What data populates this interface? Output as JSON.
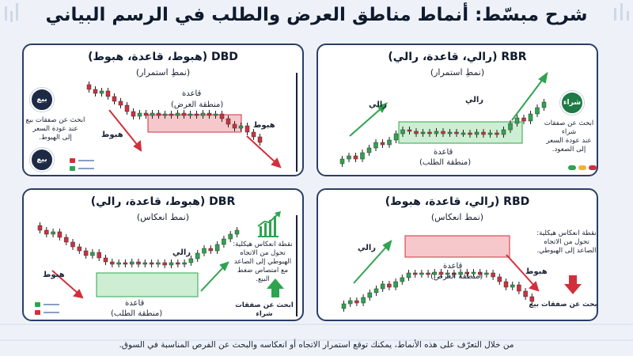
{
  "title": "شرح مبسّط: أنماط مناطق العرض والطلب في الرسم البياني",
  "footer": "من خلال التعرّف على هذه الأنماط، يمكنك توقع استمرار الاتجاه أو انعكاسه والبحث عن الفرص المناسبة في السوق.",
  "colors": {
    "bullish": "#2ea44f",
    "bearish": "#d0303c",
    "demand_zone": "#cdeed3",
    "supply_zone": "#f6c8cc",
    "card_border": "#2a3e66"
  },
  "rbr": {
    "title": "RBR (رالي، قاعدة، رالي)",
    "subtitle": "(نمطِ استمرار)",
    "rally1": "رالي",
    "rally2": "رالي",
    "base": "قاعدة",
    "zone": "(منطقة الطلب)",
    "side_text": [
      "ابحث عن صفقات شراء",
      "عند عودة السعر",
      "إلى الصعود."
    ],
    "badge": "شراء"
  },
  "dbd": {
    "title": "DBD (هبوط، قاعدة، هبوط)",
    "subtitle": "(نمطِ استمرار)",
    "drop1": "هبوط",
    "drop2": "هبوط",
    "base": "قاعدة",
    "zone": "(منطقة العرض)",
    "side_text": [
      "ابحث عن صفقات بيع",
      "عند عودة السعر",
      "إلى الهبوط."
    ],
    "badge": "بيع"
  },
  "rbd": {
    "title": "RBD (رالي، قاعدة، هبوط)",
    "subtitle": "(نمط انعكاس)",
    "rally": "رالي",
    "drop": "هبوط",
    "base": "قاعدة",
    "zone": "(منطقة العرض)",
    "side_text": [
      "نقطة انعكاس هيكلية:",
      "تحول من الاتجاه",
      "الصاعد إلى الهبوطي."
    ],
    "action": "ابحث عن صفقات بيع"
  },
  "dbr": {
    "title": "DBR (هبوط، قاعدة، رالي)",
    "subtitle": "(نمط انعكاس)",
    "drop": "هبوط",
    "rally": "رالي",
    "base": "قاعدة",
    "zone": "(منطقة الطلب)",
    "side_text": [
      "نقطة انعكاس هيكلية:",
      "تحول من الاتجاه",
      "الهبوطي إلى الصاعد",
      "مع امتصاص ضغط البيع."
    ],
    "action": "ابحث عن صفقات شراء"
  }
}
